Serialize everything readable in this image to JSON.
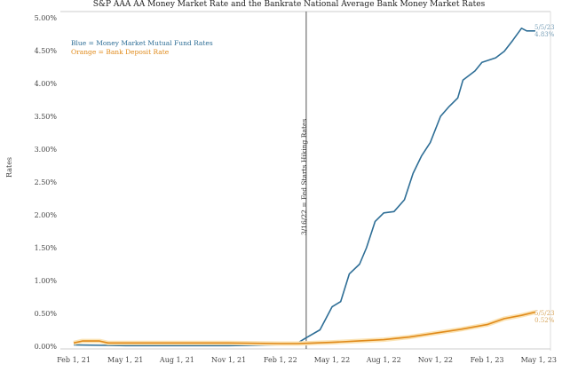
{
  "chart_data": {
    "type": "line",
    "title": "S&P AAA AA Money Market Rate and the Bankrate National Average Bank Money Market Rates",
    "xlabel": "",
    "ylabel": "Rates",
    "ylim": [
      0,
      5
    ],
    "yticks": [
      "0.00%",
      "0.50%",
      "1.00%",
      "1.50%",
      "2.00%",
      "2.50%",
      "3.00%",
      "3.50%",
      "4.00%",
      "4.50%",
      "5.00%"
    ],
    "xticks": [
      "Feb 1, 21",
      "May 1, 21",
      "Aug 1, 21",
      "Nov 1, 21",
      "Feb 1, 22",
      "May 1, 22",
      "Aug 1, 22",
      "Nov 1, 22",
      "Feb 1, 23",
      "May 1, 23"
    ],
    "x_unit": "months since Feb 1, 2021",
    "legend": {
      "blue": "Blue = Money Market Mutual Fund Rates",
      "orange": "Orange = Bank Deposit Rate",
      "placement": "top-left"
    },
    "vline": {
      "x": 13.5,
      "label": "3/16/22 = Fed Starts Hiking Rates"
    },
    "series": [
      {
        "name": "Money Market Mutual Fund Rates",
        "color": "#2e6e96",
        "x": [
          0,
          3,
          6,
          9,
          12,
          13,
          13.5,
          14.3,
          15,
          15.5,
          16,
          16.6,
          17,
          17.5,
          18,
          18.6,
          19.2,
          19.7,
          20.2,
          20.7,
          21.3,
          21.8,
          22.3,
          22.6,
          23.3,
          23.7,
          24.5,
          25,
          25.5,
          26,
          26.3,
          26.8
        ],
        "y": [
          0.02,
          0.01,
          0.01,
          0.01,
          0.02,
          0.05,
          0.13,
          0.25,
          0.6,
          0.68,
          1.1,
          1.25,
          1.5,
          1.9,
          2.03,
          2.05,
          2.23,
          2.63,
          2.9,
          3.1,
          3.5,
          3.65,
          3.78,
          4.05,
          4.19,
          4.32,
          4.39,
          4.49,
          4.66,
          4.84,
          4.8,
          4.8
        ]
      },
      {
        "name": "Bank Deposit Rate",
        "color": "#e08a1a",
        "x": [
          0,
          0.5,
          1.5,
          2,
          6,
          9,
          12,
          13,
          14,
          15,
          16.5,
          18,
          19.5,
          21,
          22.5,
          24,
          25,
          26,
          26.8
        ],
        "y": [
          0.05,
          0.08,
          0.08,
          0.05,
          0.05,
          0.05,
          0.04,
          0.04,
          0.05,
          0.06,
          0.08,
          0.1,
          0.14,
          0.2,
          0.26,
          0.33,
          0.42,
          0.47,
          0.52
        ]
      }
    ],
    "end_labels": [
      {
        "date": "5/5/23",
        "value": "4.83%"
      },
      {
        "date": "5/5/23",
        "value": "0.52%"
      }
    ]
  }
}
